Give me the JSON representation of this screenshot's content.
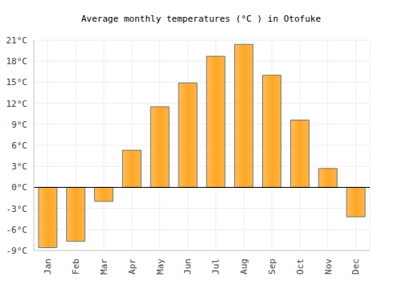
{
  "chart_data": {
    "type": "bar",
    "title": "Average monthly temperatures (°C ) in Otofuke",
    "categories": [
      "Jan",
      "Feb",
      "Mar",
      "Apr",
      "May",
      "Jun",
      "Jul",
      "Aug",
      "Sep",
      "Oct",
      "Nov",
      "Dec"
    ],
    "values": [
      -8.6,
      -7.7,
      -2.0,
      5.3,
      11.5,
      14.9,
      18.7,
      20.4,
      16.0,
      9.6,
      2.7,
      -4.2
    ],
    "color": "#ffa726",
    "ylim": [
      -9,
      21
    ],
    "yticks": [
      {
        "value": -9,
        "label": "-9°C"
      },
      {
        "value": -6,
        "label": "-6°C"
      },
      {
        "value": -3,
        "label": "-3°C"
      },
      {
        "value": 0,
        "label": "0°C"
      },
      {
        "value": 3,
        "label": "3°C"
      },
      {
        "value": 6,
        "label": "6°C"
      },
      {
        "value": 9,
        "label": "9°C"
      },
      {
        "value": 12,
        "label": "12°C"
      },
      {
        "value": 15,
        "label": "15°C"
      },
      {
        "value": 18,
        "label": "18°C"
      },
      {
        "value": 21,
        "label": "21°C"
      }
    ],
    "grid": true
  }
}
